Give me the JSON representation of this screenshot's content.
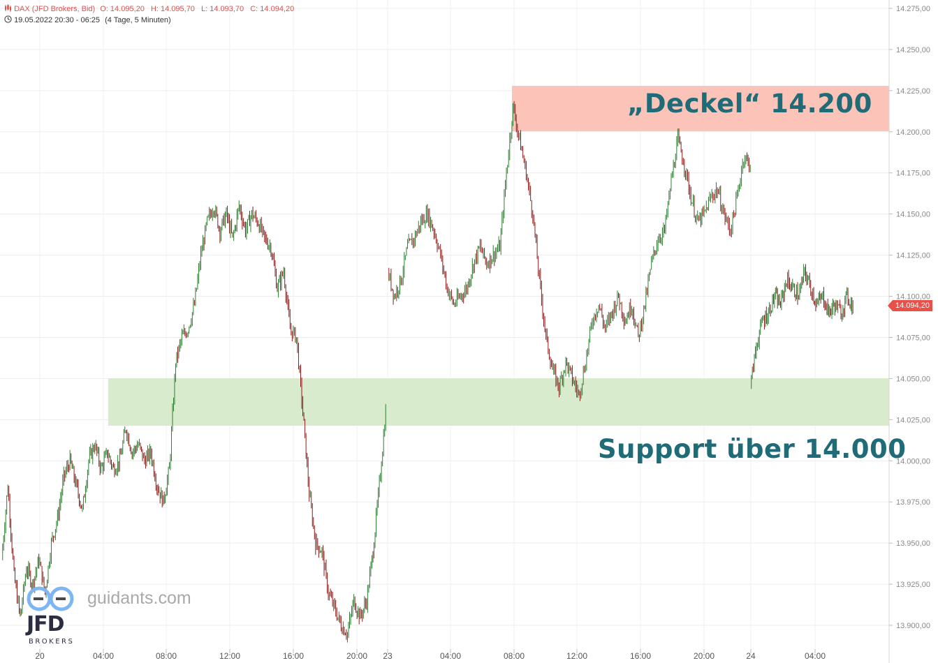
{
  "header": {
    "instrument": "DAX (JFD Brokers, Bid)",
    "open": "O: 14.095,20",
    "high": "H: 14.095,70",
    "low": "L: 14.093,70",
    "close": "C: 14.094,20",
    "period": "19.05.2022 20:30 - 06:25",
    "range": "(4 Tage, 5 Minuten)"
  },
  "annotations": {
    "resistance_label": "„Deckel“ 14.200",
    "support_label": "Support über 14.000"
  },
  "price_tag": "14.094,20",
  "watermark": {
    "site": "guidants.com",
    "brand": "JFD",
    "brand_sub": "BROKERS"
  },
  "colors": {
    "up": "#2e7d32",
    "down": "#8b1a1a",
    "resistance_zone": "#fcc4b9",
    "support_zone": "#d8ebcc",
    "annotation": "#1f6b78",
    "price_tag": "#e8504a"
  },
  "chart_data": {
    "type": "candlestick",
    "title": "DAX (JFD Brokers, Bid)",
    "timeframe": "5 Minuten",
    "ylim": [
      13890,
      14280
    ],
    "y_ticks": [
      "14.275,00",
      "14.250,00",
      "14.225,00",
      "14.200,00",
      "14.175,00",
      "14.150,00",
      "14.125,00",
      "14.100,00",
      "14.075,00",
      "14.050,00",
      "14.025,00",
      "14.000,00",
      "13.975,00",
      "13.950,00",
      "13.925,00",
      "13.900,00"
    ],
    "x_ticks": [
      "20",
      "04:00",
      "08:00",
      "12:00",
      "16:00",
      "20:00",
      "23",
      "04:00",
      "08:00",
      "12:00",
      "16:00",
      "20:00",
      "24",
      "04:00"
    ],
    "zones": [
      {
        "name": "resistance",
        "from": 14200,
        "to": 14228
      },
      {
        "name": "support",
        "from": 14021,
        "to": 14050
      }
    ],
    "last_price": 14094.2,
    "segments": [
      {
        "label": "20",
        "points": [
          [
            0,
            13940
          ],
          [
            1,
            13985
          ],
          [
            2,
            13930
          ],
          [
            3,
            13905
          ],
          [
            4,
            13935
          ],
          [
            5,
            13925
          ],
          [
            6,
            13940
          ],
          [
            7,
            13920
          ],
          [
            8,
            13950
          ],
          [
            9,
            13965
          ],
          [
            10,
            13990
          ],
          [
            11,
            14000
          ],
          [
            12,
            13985
          ],
          [
            13,
            13970
          ],
          [
            14,
            14000
          ],
          [
            15,
            14010
          ],
          [
            16,
            13995
          ],
          [
            17,
            14005
          ],
          [
            18,
            13995
          ],
          [
            19,
            14000
          ],
          [
            20,
            14020
          ],
          [
            21,
            14005
          ],
          [
            22,
            14010
          ],
          [
            23,
            14000
          ],
          [
            24,
            14005
          ],
          [
            25,
            13985
          ],
          [
            26,
            13975
          ],
          [
            27,
            13995
          ],
          [
            28,
            14060
          ],
          [
            29,
            14075
          ],
          [
            30,
            14080
          ]
        ]
      },
      {
        "label": "20b",
        "points": [
          [
            30,
            14080
          ],
          [
            31,
            14095
          ],
          [
            32,
            14125
          ],
          [
            33,
            14145
          ],
          [
            34,
            14155
          ],
          [
            35,
            14140
          ],
          [
            36,
            14150
          ],
          [
            37,
            14135
          ],
          [
            38,
            14155
          ],
          [
            39,
            14140
          ],
          [
            40,
            14150
          ],
          [
            41,
            14145
          ],
          [
            42,
            14135
          ],
          [
            43,
            14130
          ],
          [
            44,
            14105
          ],
          [
            45,
            14115
          ],
          [
            46,
            14080
          ],
          [
            47,
            14075
          ],
          [
            48,
            14030
          ],
          [
            49,
            13980
          ],
          [
            50,
            13950
          ],
          [
            51,
            13945
          ],
          [
            52,
            13920
          ],
          [
            53,
            13910
          ],
          [
            54,
            13900
          ],
          [
            55,
            13895
          ],
          [
            56,
            13915
          ],
          [
            57,
            13905
          ],
          [
            58,
            13915
          ],
          [
            59,
            13945
          ],
          [
            60,
            13985
          ],
          [
            61,
            14030
          ]
        ]
      },
      {
        "label": "23",
        "points": [
          [
            62,
            14115
          ],
          [
            63,
            14100
          ],
          [
            64,
            14110
          ],
          [
            65,
            14130
          ],
          [
            66,
            14135
          ],
          [
            67,
            14145
          ],
          [
            68,
            14150
          ],
          [
            69,
            14140
          ],
          [
            70,
            14125
          ],
          [
            71,
            14105
          ],
          [
            72,
            14095
          ],
          [
            73,
            14100
          ],
          [
            74,
            14105
          ],
          [
            75,
            14120
          ],
          [
            76,
            14130
          ],
          [
            77,
            14120
          ],
          [
            78,
            14125
          ],
          [
            79,
            14130
          ],
          [
            80,
            14175
          ],
          [
            81,
            14215
          ],
          [
            82,
            14195
          ],
          [
            83,
            14175
          ],
          [
            84,
            14150
          ],
          [
            85,
            14110
          ],
          [
            86,
            14075
          ],
          [
            87,
            14055
          ],
          [
            88,
            14045
          ],
          [
            89,
            14060
          ],
          [
            90,
            14050
          ],
          [
            91,
            14040
          ],
          [
            92,
            14060
          ],
          [
            93,
            14085
          ],
          [
            94,
            14095
          ],
          [
            95,
            14080
          ],
          [
            96,
            14090
          ],
          [
            97,
            14100
          ],
          [
            98,
            14085
          ],
          [
            99,
            14095
          ],
          [
            100,
            14075
          ],
          [
            101,
            14095
          ],
          [
            102,
            14120
          ],
          [
            103,
            14135
          ],
          [
            104,
            14140
          ],
          [
            105,
            14170
          ],
          [
            106,
            14195
          ],
          [
            107,
            14180
          ],
          [
            108,
            14160
          ],
          [
            109,
            14145
          ],
          [
            110,
            14150
          ],
          [
            111,
            14160
          ],
          [
            112,
            14165
          ],
          [
            113,
            14150
          ],
          [
            114,
            14140
          ],
          [
            115,
            14160
          ],
          [
            116,
            14185
          ],
          [
            117,
            14180
          ]
        ]
      },
      {
        "label": "24",
        "points": [
          [
            118,
            14045
          ],
          [
            119,
            14070
          ],
          [
            120,
            14085
          ],
          [
            121,
            14090
          ],
          [
            122,
            14100
          ],
          [
            123,
            14095
          ],
          [
            124,
            14110
          ],
          [
            125,
            14105
          ],
          [
            126,
            14100
          ],
          [
            127,
            14115
          ],
          [
            128,
            14105
          ],
          [
            129,
            14095
          ],
          [
            130,
            14100
          ],
          [
            131,
            14090
          ],
          [
            132,
            14095
          ],
          [
            133,
            14090
          ],
          [
            134,
            14100
          ],
          [
            135,
            14094
          ]
        ]
      }
    ]
  }
}
